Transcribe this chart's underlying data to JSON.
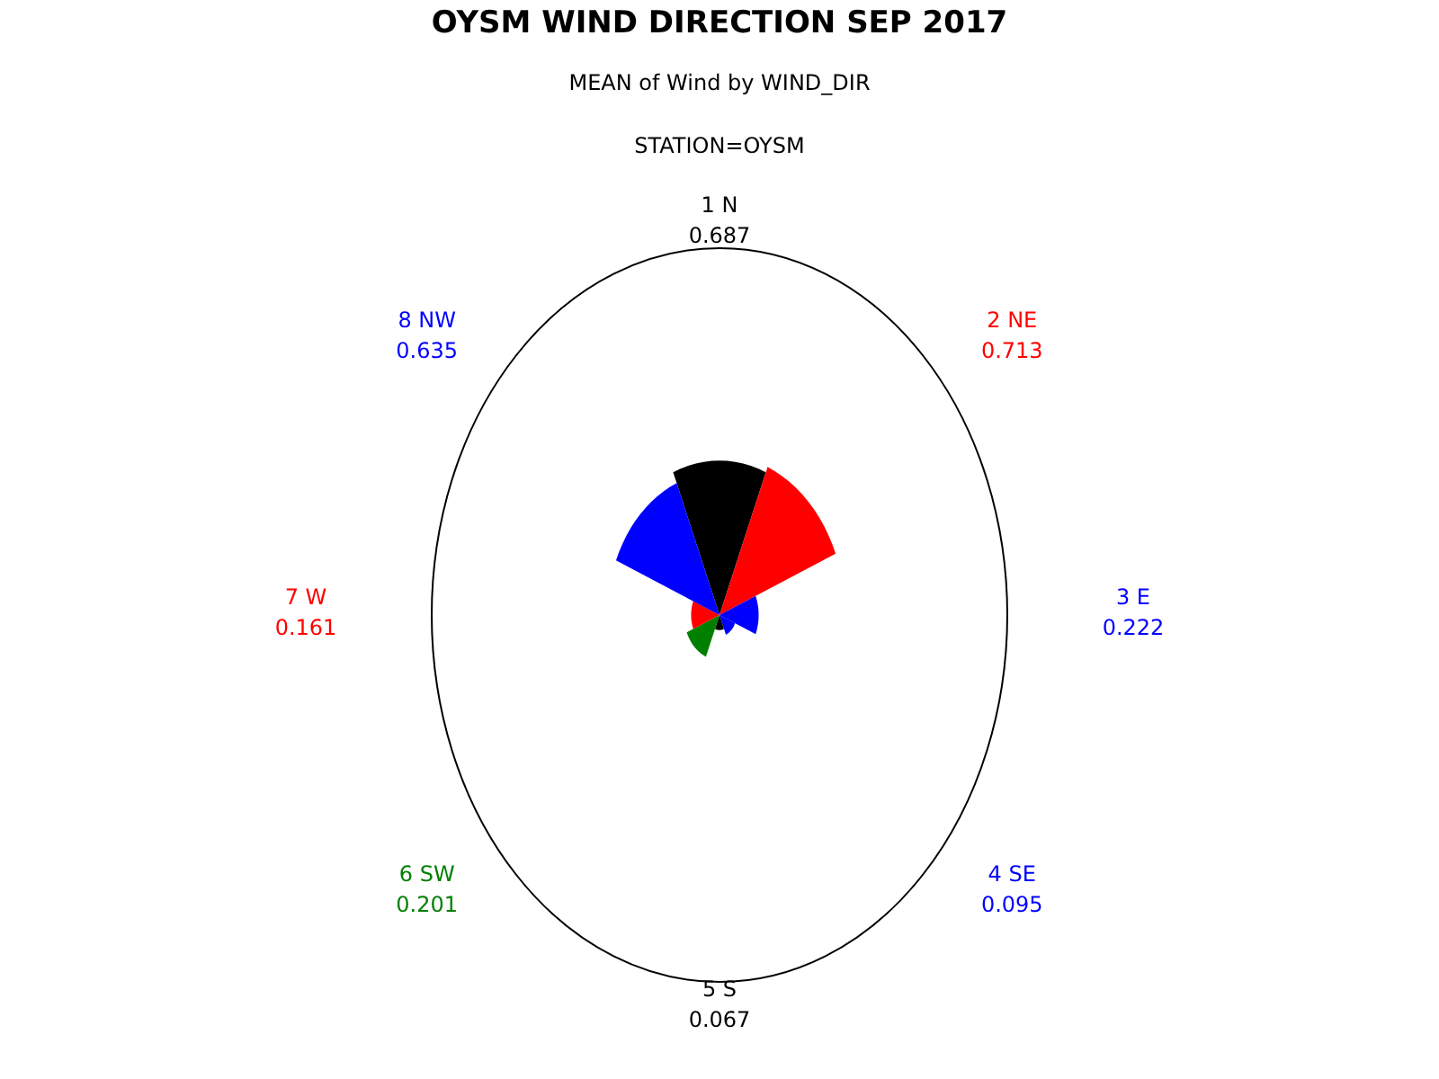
{
  "chart_data": {
    "type": "other",
    "title": "OYSM WIND DIRECTION SEP 2017",
    "subtitle": "MEAN of Wind by WIND_DIR",
    "annotations": [
      "STATION=OYSM"
    ],
    "categories": [
      "1 N",
      "2 NE",
      "3 E",
      "4 SE",
      "5 S",
      "6 SW",
      "7 W",
      "8 NW"
    ],
    "values": [
      0.687,
      0.713,
      0.222,
      0.095,
      0.067,
      0.201,
      0.161,
      0.635
    ],
    "colors": [
      "#000000",
      "#ff0000",
      "#0000ff",
      "#0000ff",
      "#000000",
      "#008000",
      "#ff0000",
      "#0000ff"
    ],
    "data_labels": true
  }
}
